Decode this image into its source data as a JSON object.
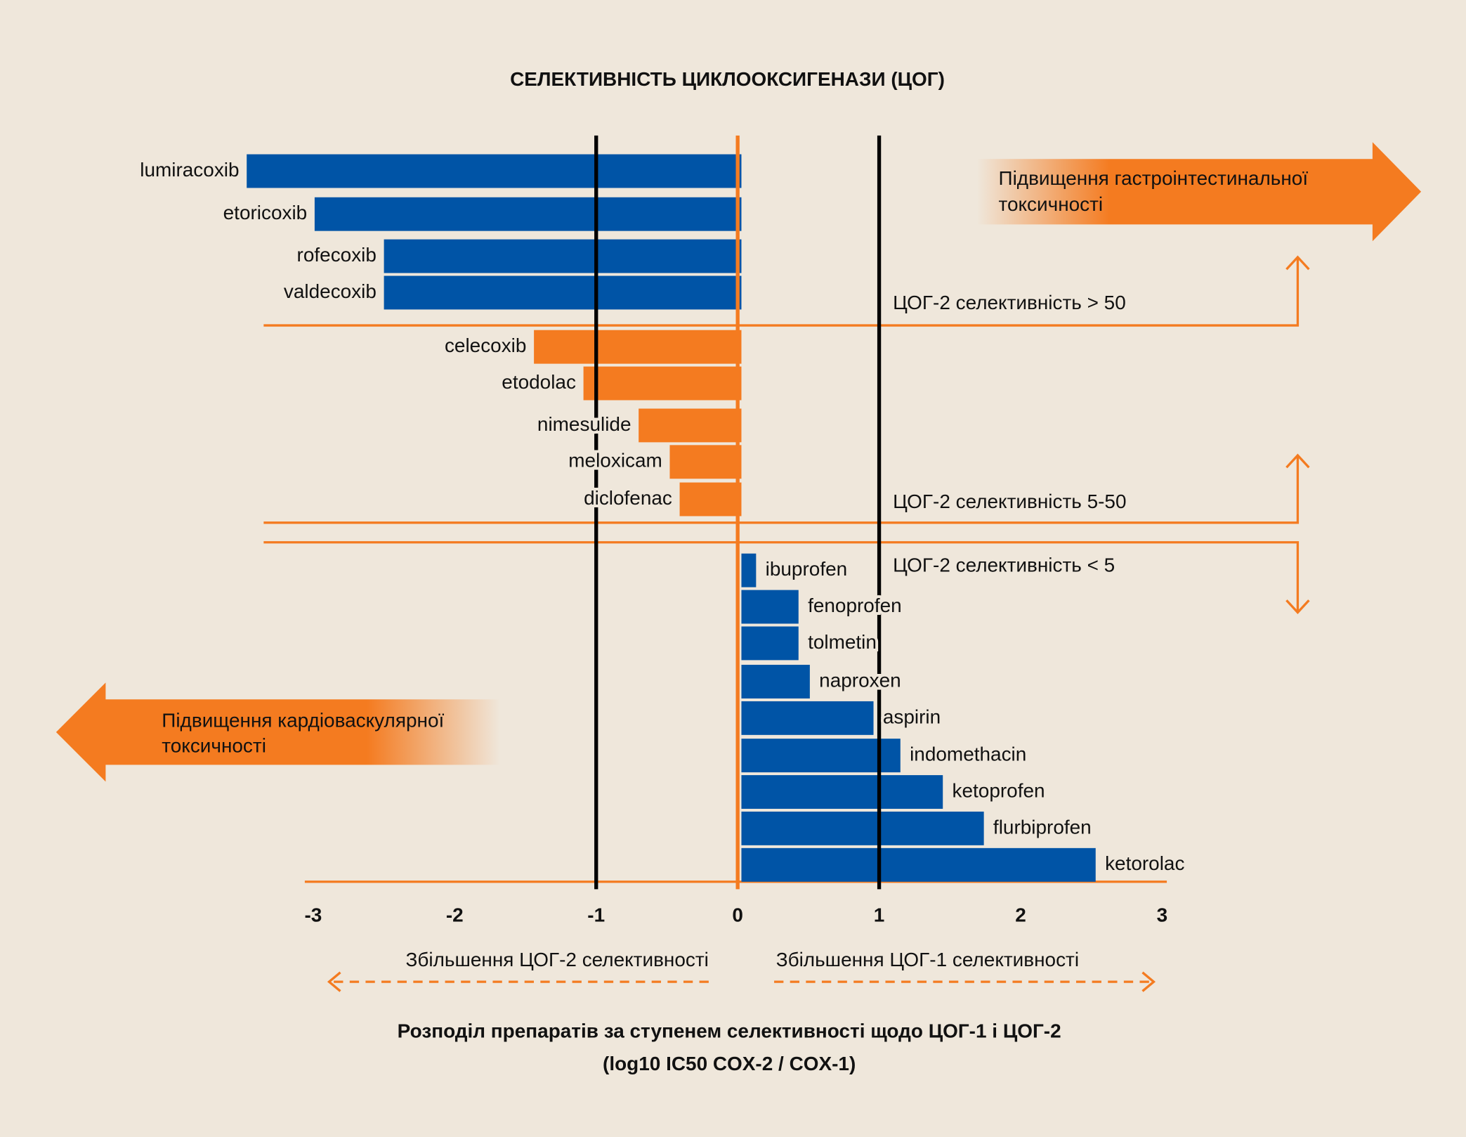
{
  "chart_data": {
    "type": "bar",
    "orientation": "horizontal",
    "title": "СЕЛЕКТИВНІСТЬ ЦИКЛООКСИГЕНАЗИ (ЦОГ)",
    "categories": [
      "lumiracoxib",
      "etoricoxib",
      "rofecoxib",
      "valdecoxib",
      "celecoxib",
      "etodolac",
      "nimesulide",
      "meloxicam",
      "diclofenac",
      "ibuprofen",
      "fenoprofen",
      "tolmetin",
      "naproxen",
      "aspirin",
      "indomethacin",
      "ketoprofen",
      "flurbiprofen",
      "ketorolac"
    ],
    "values": [
      -3.47,
      -2.99,
      -2.5,
      -2.5,
      -1.44,
      -1.09,
      -0.7,
      -0.48,
      -0.41,
      0.13,
      0.43,
      0.43,
      0.51,
      0.96,
      1.15,
      1.45,
      1.74,
      2.53
    ],
    "colors": [
      "#0054a6",
      "#0054a6",
      "#0054a6",
      "#0054a6",
      "#f47b20",
      "#f47b20",
      "#f47b20",
      "#f47b20",
      "#f47b20",
      "#0054a6",
      "#0054a6",
      "#0054a6",
      "#0054a6",
      "#0054a6",
      "#0054a6",
      "#0054a6",
      "#0054a6",
      "#0054a6"
    ],
    "xlim": [
      -3,
      3
    ],
    "xticks": [
      -3,
      -2,
      -1,
      0,
      1,
      2,
      3
    ],
    "reference_lines": [
      -1,
      1
    ],
    "zones": [
      "ЦОГ-2 селективність > 50",
      "ЦОГ-2 селективність 5-50",
      "ЦОГ-2 селективність < 5"
    ],
    "gi_arrow": [
      "Підвищення гастроінтестинальної",
      "токсичності"
    ],
    "cv_arrow": [
      "Підвищення кардіоваскулярної",
      "токсичності"
    ],
    "direction_labels": [
      "Збільшення ЦОГ-2 селективності",
      "Збільшення ЦОГ-1 селективності"
    ],
    "caption": [
      "Розподіл препаратів за ступенем селективності щодо ЦОГ-1 і ЦОГ-2",
      "(log10 IC50 COX-2 / COX-1)"
    ]
  }
}
